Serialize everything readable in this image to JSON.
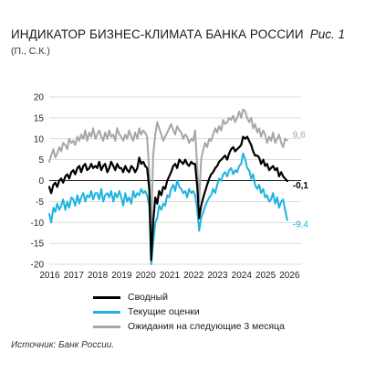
{
  "header": {
    "title": "ИНДИКАТОР БИЗНЕС-КЛИМАТА БАНКА РОССИИ",
    "figure_label": "Рис. 1",
    "subtitle": "(П., С.К.)"
  },
  "footer": {
    "source": "Источник: Банк России."
  },
  "colors": {
    "summary": "#000000",
    "current": "#1fb3e0",
    "expect": "#a6a6a6",
    "grid": "#d0d0d0",
    "zero": "#1a1a1a"
  },
  "chart_data": {
    "type": "line",
    "title": "ИНДИКАТОР БИЗНЕС-КЛИМАТА БАНКА РОССИИ",
    "xlabel": "",
    "ylabel": "",
    "xlim": [
      2016.0,
      2026.5
    ],
    "ylim": [
      -20,
      20
    ],
    "y_ticks": [
      -20,
      -15,
      -10,
      -5,
      0,
      5,
      10,
      15,
      20
    ],
    "x_ticks": [
      2016,
      2017,
      2018,
      2019,
      2020,
      2021,
      2022,
      2023,
      2024,
      2025,
      2026
    ],
    "grid": true,
    "legend_position": "bottom",
    "end_labels": [
      {
        "series": "expect",
        "text": "9,6"
      },
      {
        "series": "summary",
        "text": "-0,1"
      },
      {
        "series": "current",
        "text": "-9,4"
      }
    ],
    "series": [
      {
        "key": "summary",
        "name": "Сводный",
        "x": [
          2016.0,
          2016.08,
          2016.17,
          2016.25,
          2016.33,
          2016.42,
          2016.5,
          2016.58,
          2016.67,
          2016.75,
          2016.83,
          2016.92,
          2017.0,
          2017.08,
          2017.17,
          2017.25,
          2017.33,
          2017.42,
          2017.5,
          2017.58,
          2017.67,
          2017.75,
          2017.83,
          2017.92,
          2018.0,
          2018.08,
          2018.17,
          2018.25,
          2018.33,
          2018.42,
          2018.5,
          2018.58,
          2018.67,
          2018.75,
          2018.83,
          2018.92,
          2019.0,
          2019.08,
          2019.17,
          2019.25,
          2019.33,
          2019.42,
          2019.5,
          2019.58,
          2019.67,
          2019.75,
          2019.83,
          2019.92,
          2020.0,
          2020.08,
          2020.17,
          2020.25,
          2020.33,
          2020.42,
          2020.5,
          2020.58,
          2020.67,
          2020.75,
          2020.83,
          2020.92,
          2021.0,
          2021.08,
          2021.17,
          2021.25,
          2021.33,
          2021.42,
          2021.5,
          2021.58,
          2021.67,
          2021.75,
          2021.83,
          2021.92,
          2022.0,
          2022.08,
          2022.17,
          2022.25,
          2022.33,
          2022.42,
          2022.5,
          2022.58,
          2022.67,
          2022.75,
          2022.83,
          2022.92,
          2023.0,
          2023.08,
          2023.17,
          2023.25,
          2023.33,
          2023.42,
          2023.5,
          2023.58,
          2023.67,
          2023.75,
          2023.83,
          2023.92,
          2024.0,
          2024.08,
          2024.17,
          2024.25,
          2024.33,
          2024.42,
          2024.5,
          2024.58,
          2024.67,
          2024.75,
          2024.83,
          2024.92,
          2025.0,
          2025.08,
          2025.17,
          2025.25,
          2025.33,
          2025.42,
          2025.5,
          2025.58,
          2025.67,
          2025.75,
          2025.83,
          2025.92
        ],
        "values": [
          -1.5,
          -3.0,
          -1.0,
          -0.5,
          -1.5,
          0.0,
          0.5,
          -0.5,
          1.0,
          1.5,
          0.5,
          2.0,
          2.5,
          1.5,
          3.0,
          3.5,
          2.0,
          3.5,
          4.0,
          2.5,
          3.0,
          4.0,
          3.0,
          3.5,
          3.0,
          4.5,
          2.5,
          3.5,
          4.0,
          2.0,
          3.0,
          4.5,
          3.5,
          2.5,
          4.0,
          3.0,
          3.0,
          2.0,
          3.5,
          2.5,
          2.0,
          3.5,
          3.0,
          2.0,
          3.0,
          5.5,
          4.0,
          4.5,
          3.5,
          3.0,
          -2.0,
          -19.0,
          -10.0,
          -4.0,
          -5.5,
          -2.5,
          -3.5,
          -1.5,
          -2.0,
          0.0,
          1.0,
          2.0,
          3.5,
          4.0,
          3.0,
          5.0,
          4.5,
          4.0,
          5.0,
          4.0,
          3.5,
          4.5,
          4.0,
          4.0,
          -1.5,
          -9.0,
          -6.0,
          -4.0,
          -2.5,
          -1.0,
          0.5,
          1.5,
          2.0,
          3.0,
          3.5,
          4.5,
          5.0,
          5.5,
          6.0,
          5.0,
          6.5,
          7.5,
          8.0,
          7.0,
          7.5,
          8.0,
          8.5,
          10.5,
          10.0,
          10.5,
          9.5,
          8.5,
          7.0,
          6.0,
          6.0,
          5.5,
          4.0,
          5.0,
          3.5,
          4.0,
          2.5,
          3.0,
          3.5,
          2.5,
          3.0,
          1.0,
          2.0,
          1.0,
          0.5,
          -0.1
        ]
      },
      {
        "key": "current",
        "name": "Текущие оценки",
        "x": [
          2016.0,
          2016.08,
          2016.17,
          2016.25,
          2016.33,
          2016.42,
          2016.5,
          2016.58,
          2016.67,
          2016.75,
          2016.83,
          2016.92,
          2017.0,
          2017.08,
          2017.17,
          2017.25,
          2017.33,
          2017.42,
          2017.5,
          2017.58,
          2017.67,
          2017.75,
          2017.83,
          2017.92,
          2018.0,
          2018.08,
          2018.17,
          2018.25,
          2018.33,
          2018.42,
          2018.5,
          2018.58,
          2018.67,
          2018.75,
          2018.83,
          2018.92,
          2019.0,
          2019.08,
          2019.17,
          2019.25,
          2019.33,
          2019.42,
          2019.5,
          2019.58,
          2019.67,
          2019.75,
          2019.83,
          2019.92,
          2020.0,
          2020.08,
          2020.17,
          2020.25,
          2020.33,
          2020.42,
          2020.5,
          2020.58,
          2020.67,
          2020.75,
          2020.83,
          2020.92,
          2021.0,
          2021.08,
          2021.17,
          2021.25,
          2021.33,
          2021.42,
          2021.5,
          2021.58,
          2021.67,
          2021.75,
          2021.83,
          2021.92,
          2022.0,
          2022.08,
          2022.17,
          2022.25,
          2022.33,
          2022.42,
          2022.5,
          2022.58,
          2022.67,
          2022.75,
          2022.83,
          2022.92,
          2023.0,
          2023.08,
          2023.17,
          2023.25,
          2023.33,
          2023.42,
          2023.5,
          2023.58,
          2023.67,
          2023.75,
          2023.83,
          2023.92,
          2024.0,
          2024.08,
          2024.17,
          2024.25,
          2024.33,
          2024.42,
          2024.5,
          2024.58,
          2024.67,
          2024.75,
          2024.83,
          2024.92,
          2025.0,
          2025.08,
          2025.17,
          2025.25,
          2025.33,
          2025.42,
          2025.5,
          2025.58,
          2025.67,
          2025.75,
          2025.83,
          2025.92
        ],
        "values": [
          -8.0,
          -10.0,
          -6.5,
          -7.5,
          -5.5,
          -7.0,
          -6.0,
          -4.5,
          -7.0,
          -5.0,
          -6.5,
          -4.0,
          -4.5,
          -6.0,
          -3.5,
          -5.5,
          -4.0,
          -3.0,
          -5.0,
          -3.5,
          -4.0,
          -2.5,
          -4.5,
          -3.0,
          -3.0,
          -4.5,
          -2.0,
          -5.0,
          -3.5,
          -3.0,
          -4.0,
          -2.5,
          -5.0,
          -3.0,
          -4.0,
          -2.5,
          -4.0,
          -6.0,
          -3.0,
          -5.0,
          -4.0,
          -5.5,
          -2.5,
          -4.0,
          -3.0,
          -3.5,
          -2.0,
          -3.0,
          -2.5,
          -3.5,
          -6.0,
          -25.0,
          -15.0,
          -10.0,
          -9.0,
          -6.0,
          -7.0,
          -5.5,
          -6.0,
          -3.5,
          -4.0,
          -2.0,
          -1.0,
          -2.5,
          0.0,
          -1.5,
          -2.0,
          -3.0,
          -2.5,
          -4.0,
          -2.0,
          -3.0,
          -2.5,
          -3.5,
          -7.0,
          -12.0,
          -9.0,
          -7.5,
          -6.0,
          -5.0,
          -4.0,
          -3.5,
          -2.0,
          -3.0,
          -1.0,
          0.5,
          0.0,
          1.5,
          2.0,
          1.0,
          2.5,
          3.0,
          1.5,
          2.5,
          2.0,
          3.5,
          4.0,
          6.5,
          5.0,
          3.0,
          2.5,
          0.5,
          1.5,
          -1.0,
          -2.0,
          -1.0,
          -3.0,
          -2.0,
          -4.0,
          -3.5,
          -5.0,
          -4.5,
          -3.0,
          -5.5,
          -4.0,
          -6.5,
          -5.0,
          -4.5,
          -7.0,
          -9.4
        ]
      },
      {
        "key": "expect",
        "name": "Ожидания на следующие 3 месяца",
        "x": [
          2016.0,
          2016.08,
          2016.17,
          2016.25,
          2016.33,
          2016.42,
          2016.5,
          2016.58,
          2016.67,
          2016.75,
          2016.83,
          2016.92,
          2017.0,
          2017.08,
          2017.17,
          2017.25,
          2017.33,
          2017.42,
          2017.5,
          2017.58,
          2017.67,
          2017.75,
          2017.83,
          2017.92,
          2018.0,
          2018.08,
          2018.17,
          2018.25,
          2018.33,
          2018.42,
          2018.5,
          2018.58,
          2018.67,
          2018.75,
          2018.83,
          2018.92,
          2019.0,
          2019.08,
          2019.17,
          2019.25,
          2019.33,
          2019.42,
          2019.5,
          2019.58,
          2019.67,
          2019.75,
          2019.83,
          2019.92,
          2020.0,
          2020.08,
          2020.17,
          2020.25,
          2020.33,
          2020.42,
          2020.5,
          2020.58,
          2020.67,
          2020.75,
          2020.83,
          2020.92,
          2021.0,
          2021.08,
          2021.17,
          2021.25,
          2021.33,
          2021.42,
          2021.5,
          2021.58,
          2021.67,
          2021.75,
          2021.83,
          2021.92,
          2022.0,
          2022.08,
          2022.17,
          2022.25,
          2022.33,
          2022.42,
          2022.5,
          2022.58,
          2022.67,
          2022.75,
          2022.83,
          2022.92,
          2023.0,
          2023.08,
          2023.17,
          2023.25,
          2023.33,
          2023.42,
          2023.5,
          2023.58,
          2023.67,
          2023.75,
          2023.83,
          2023.92,
          2024.0,
          2024.08,
          2024.17,
          2024.25,
          2024.33,
          2024.42,
          2024.5,
          2024.58,
          2024.67,
          2024.75,
          2024.83,
          2024.92,
          2025.0,
          2025.08,
          2025.17,
          2025.25,
          2025.33,
          2025.42,
          2025.5,
          2025.58,
          2025.67,
          2025.75,
          2025.83,
          2025.92
        ],
        "values": [
          4.5,
          6.0,
          7.5,
          5.5,
          6.5,
          8.0,
          7.0,
          9.0,
          8.5,
          7.5,
          10.0,
          9.0,
          9.5,
          8.5,
          10.5,
          9.5,
          11.0,
          10.0,
          12.0,
          9.5,
          11.5,
          10.5,
          12.5,
          10.0,
          11.0,
          12.0,
          10.5,
          9.5,
          11.5,
          10.0,
          12.0,
          10.5,
          11.0,
          9.5,
          12.5,
          11.0,
          10.5,
          9.5,
          11.0,
          10.0,
          12.0,
          10.5,
          9.5,
          11.5,
          10.0,
          12.5,
          11.0,
          12.0,
          11.5,
          10.5,
          2.0,
          -12.0,
          6.0,
          11.0,
          14.0,
          12.5,
          11.0,
          9.5,
          10.5,
          11.5,
          12.5,
          13.5,
          12.0,
          11.0,
          13.0,
          12.0,
          11.5,
          10.0,
          11.0,
          10.5,
          9.0,
          10.0,
          9.5,
          12.0,
          3.0,
          -5.0,
          5.0,
          7.5,
          9.0,
          8.0,
          10.0,
          9.5,
          11.0,
          12.5,
          11.5,
          13.0,
          12.0,
          14.5,
          13.5,
          14.0,
          15.0,
          14.5,
          15.5,
          14.0,
          15.0,
          16.5,
          15.0,
          17.0,
          16.5,
          15.0,
          14.0,
          15.0,
          12.5,
          13.5,
          11.5,
          12.5,
          10.5,
          12.0,
          11.0,
          9.0,
          10.5,
          9.5,
          11.5,
          9.0,
          10.0,
          11.0,
          9.0,
          8.0,
          10.0,
          9.6
        ]
      }
    ]
  }
}
